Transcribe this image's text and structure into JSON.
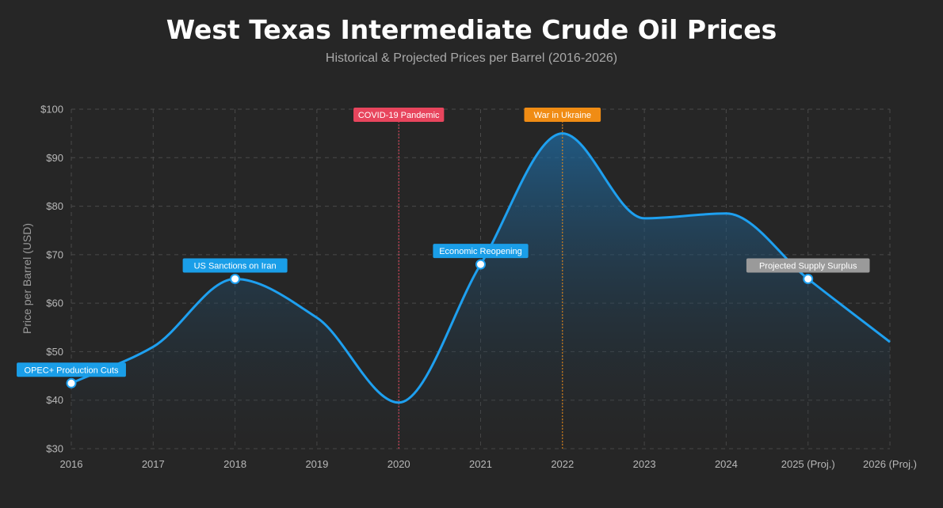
{
  "title": "West Texas Intermediate Crude Oil Prices",
  "subtitle": "Historical & Projected Prices per Barrel (2016-2026)",
  "colors": {
    "background": "#262626",
    "line": "#1ea0f0",
    "grid": "#4a4a4a",
    "covid": "#e8455d",
    "ukraine": "#f08c14",
    "annotation_blue": "#1a9ee8",
    "annotation_gray": "#9a9a9a"
  },
  "chart_data": {
    "type": "area",
    "title": "West Texas Intermediate Crude Oil Prices",
    "subtitle": "Historical & Projected Prices per Barrel (2016-2026)",
    "xlabel": "",
    "ylabel": "Price per Barrel (USD)",
    "categories": [
      "2016",
      "2017",
      "2018",
      "2019",
      "2020",
      "2021",
      "2022",
      "2023",
      "2024",
      "2025 (Proj.)",
      "2026 (Proj.)"
    ],
    "values": [
      43.5,
      51,
      65,
      57,
      39.5,
      68,
      95,
      77.5,
      78.5,
      65,
      52
    ],
    "ylim": [
      30,
      100
    ],
    "yticks": [
      30,
      40,
      50,
      60,
      70,
      80,
      90,
      100
    ],
    "ytick_labels": [
      "$30",
      "$40",
      "$50",
      "$60",
      "$70",
      "$80",
      "$90",
      "$100"
    ],
    "grid": true,
    "grid_style": "dashed",
    "event_lines": [
      {
        "label": "COVID-19 Pandemic",
        "x": "2020",
        "color": "#e8455d"
      },
      {
        "label": "War in Ukraine",
        "x": "2022",
        "color": "#f08c14"
      }
    ],
    "point_annotations": [
      {
        "label": "OPEC+ Production Cuts",
        "x": "2016",
        "color": "#1a9ee8"
      },
      {
        "label": "US Sanctions on Iran",
        "x": "2018",
        "color": "#1a9ee8"
      },
      {
        "label": "Economic Reopening",
        "x": "2021",
        "color": "#1a9ee8"
      },
      {
        "label": "Projected Supply Surplus",
        "x": "2025 (Proj.)",
        "color": "#9a9a9a"
      }
    ]
  }
}
